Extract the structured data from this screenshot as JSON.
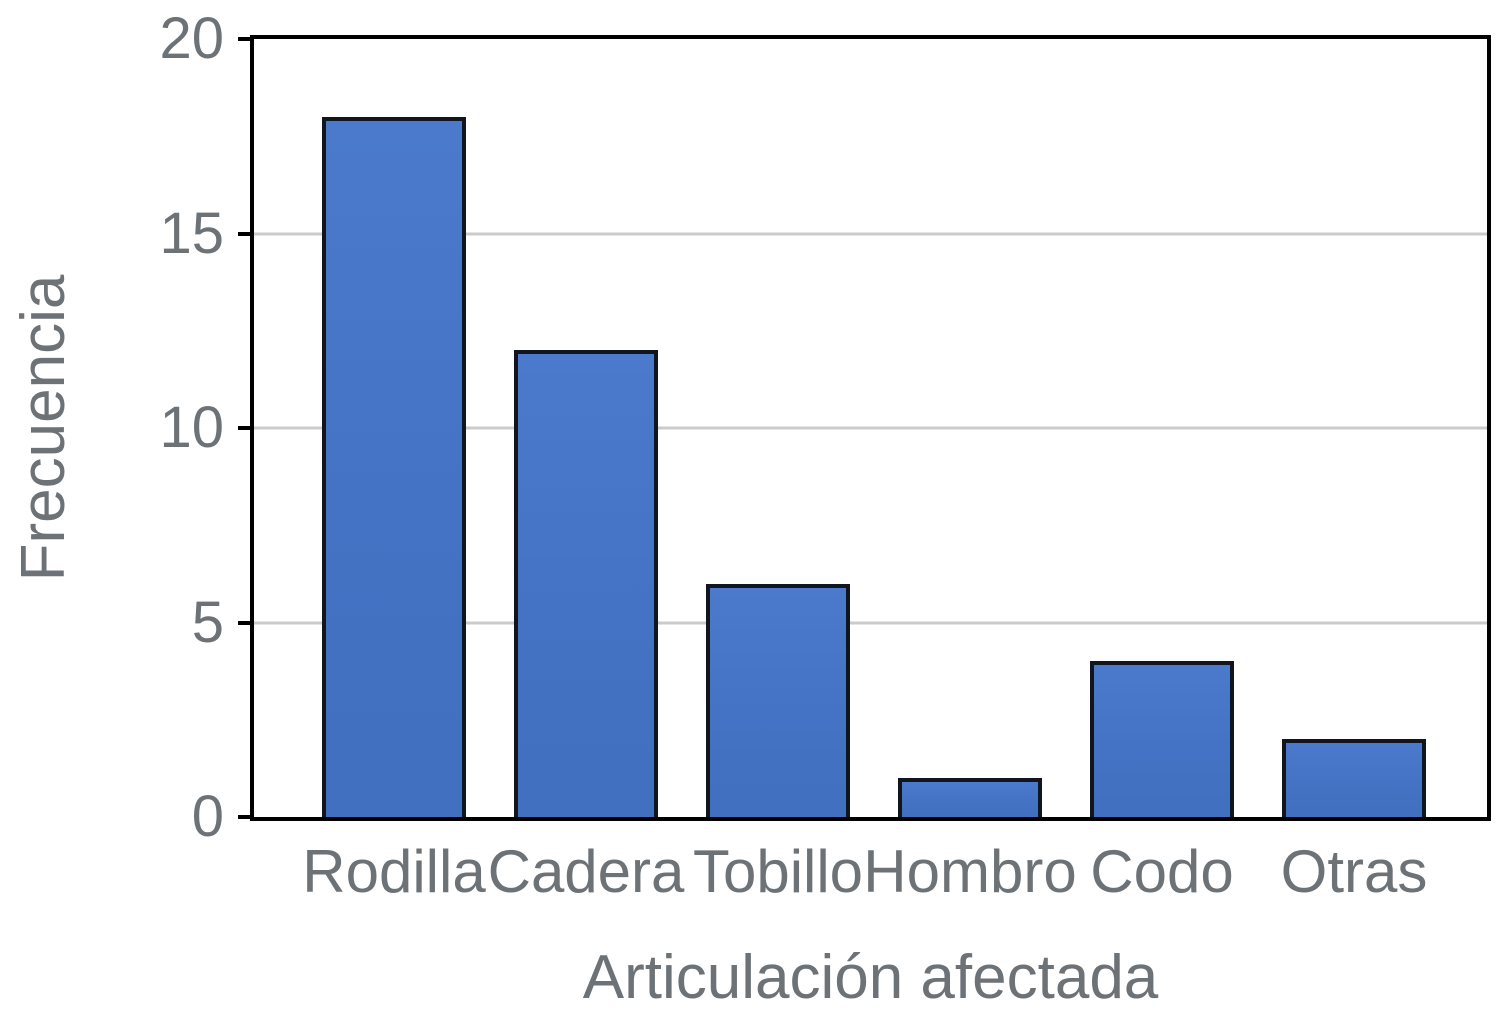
{
  "chart_data": {
    "type": "bar",
    "categories": [
      "Rodilla",
      "Cadera",
      "Tobillo",
      "Hombro",
      "Codo",
      "Otras"
    ],
    "values": [
      18,
      12,
      6,
      1,
      4,
      2
    ],
    "title": "",
    "xlabel": "Articulación afectada",
    "ylabel": "Frecuencia",
    "ylim": [
      0,
      20
    ],
    "yticks": [
      0,
      5,
      10,
      15,
      20
    ],
    "gridlines": [
      5,
      10,
      15
    ],
    "grid": "horizontal",
    "legend_position": "none",
    "colors": {
      "bar_fill": "#4472C4",
      "bar_border": "#11151F",
      "axis": "#000000",
      "gridline": "#CBCBCB",
      "text": "#6D7277"
    }
  }
}
